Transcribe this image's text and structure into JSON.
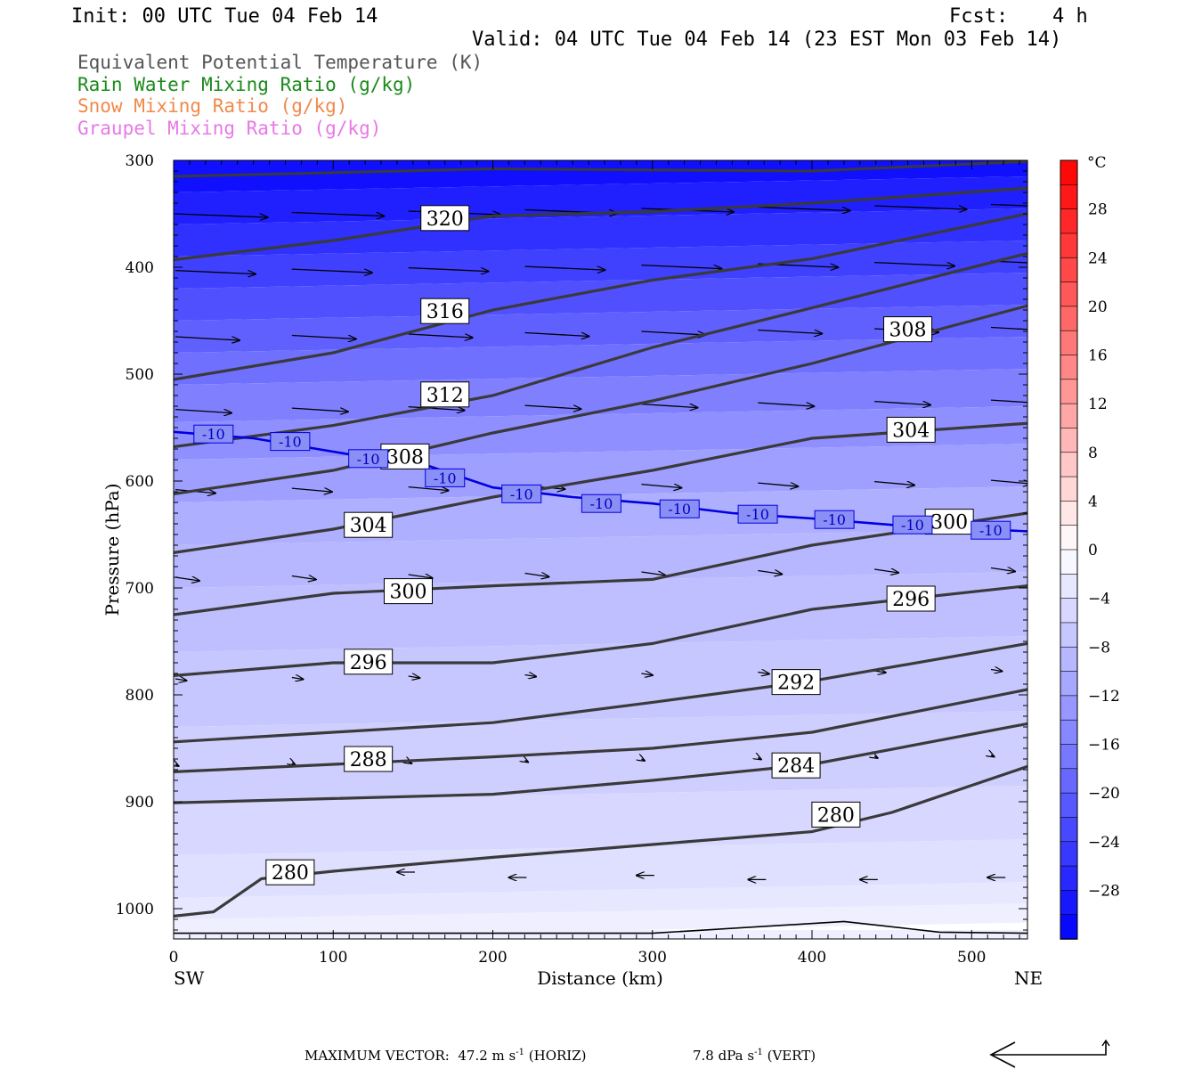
{
  "header": {
    "init": "Init: 00 UTC Tue 04 Feb 14",
    "fcst_label": "Fcst:",
    "fcst_value": "4 h",
    "valid": "Valid: 04 UTC Tue 04 Feb 14 (23 EST Mon 03 Feb 14)"
  },
  "legend": [
    {
      "label": "Equivalent Potential Temperature (K)",
      "color": "#555555"
    },
    {
      "label": "Rain Water Mixing Ratio (g/kg)",
      "color": "#1a8a1a"
    },
    {
      "label": "Snow Mixing Ratio (g/kg)",
      "color": "#f08a4b"
    },
    {
      "label": "Graupel Mixing Ratio (g/kg)",
      "color": "#e878e8"
    }
  ],
  "chart_data": {
    "type": "contour",
    "xlabel": "Distance (km)",
    "ylabel": "Pressure (hPa)",
    "xlim": [
      0,
      535
    ],
    "ylim": [
      1028,
      300
    ],
    "x_ticks": [
      0,
      100,
      200,
      300,
      400,
      500
    ],
    "y_ticks": [
      300,
      400,
      500,
      600,
      700,
      800,
      900,
      1000
    ],
    "x_end_labels": {
      "left": "SW",
      "right": "NE"
    },
    "colorbar": {
      "unit": "°C",
      "ticks": [
        28,
        24,
        20,
        16,
        12,
        8,
        4,
        0,
        -4,
        -8,
        -12,
        -16,
        -20,
        -24,
        -28
      ],
      "range": [
        -32,
        32
      ],
      "step": 2
    },
    "theta_e_contours": [
      {
        "value": 320,
        "label": "320",
        "points": [
          [
            0,
            393
          ],
          [
            100,
            375
          ],
          [
            200,
            352
          ],
          [
            300,
            348
          ],
          [
            400,
            340
          ],
          [
            535,
            326
          ]
        ],
        "label_at": [
          170,
          354
        ]
      },
      {
        "value": 316,
        "label": "316",
        "points": [
          [
            0,
            505
          ],
          [
            100,
            480
          ],
          [
            200,
            440
          ],
          [
            300,
            412
          ],
          [
            400,
            392
          ],
          [
            535,
            350
          ]
        ],
        "label_at": [
          170,
          441
        ]
      },
      {
        "value": 312,
        "label": "312",
        "points": [
          [
            0,
            568
          ],
          [
            100,
            548
          ],
          [
            200,
            520
          ],
          [
            300,
            475
          ],
          [
            400,
            438
          ],
          [
            535,
            387
          ]
        ],
        "label_at": [
          170,
          519
        ]
      },
      {
        "value": 308,
        "label": "308",
        "points": [
          [
            0,
            612
          ],
          [
            100,
            590
          ],
          [
            200,
            555
          ],
          [
            300,
            525
          ],
          [
            400,
            490
          ],
          [
            535,
            436
          ]
        ],
        "label_at": [
          145,
          577
        ],
        "label_at2": [
          460,
          458
        ]
      },
      {
        "value": 304,
        "label": "304",
        "points": [
          [
            0,
            667
          ],
          [
            100,
            645
          ],
          [
            200,
            615
          ],
          [
            300,
            590
          ],
          [
            400,
            560
          ],
          [
            535,
            546
          ]
        ],
        "label_at": [
          122,
          641
        ],
        "label_at2": [
          462,
          552
        ]
      },
      {
        "value": 300,
        "label": "300",
        "points": [
          [
            0,
            725
          ],
          [
            100,
            705
          ],
          [
            200,
            698
          ],
          [
            300,
            692
          ],
          [
            400,
            660
          ],
          [
            535,
            630
          ]
        ],
        "label_at": [
          147,
          703
        ],
        "label_at2": [
          486,
          638
        ]
      },
      {
        "value": 296,
        "label": "296",
        "points": [
          [
            0,
            782
          ],
          [
            100,
            770
          ],
          [
            200,
            770
          ],
          [
            300,
            752
          ],
          [
            400,
            720
          ],
          [
            535,
            698
          ]
        ],
        "label_at": [
          122,
          769
        ],
        "label_at2": [
          462,
          710
        ]
      },
      {
        "value": 292,
        "label": "292",
        "points": [
          [
            0,
            844
          ],
          [
            100,
            835
          ],
          [
            200,
            826
          ],
          [
            300,
            807
          ],
          [
            400,
            787
          ],
          [
            535,
            752
          ]
        ],
        "label_at": [
          390,
          788
        ]
      },
      {
        "value": 288,
        "label": "288",
        "points": [
          [
            0,
            872
          ],
          [
            100,
            865
          ],
          [
            200,
            858
          ],
          [
            300,
            850
          ],
          [
            400,
            835
          ],
          [
            535,
            795
          ]
        ],
        "label_at": [
          122,
          860
        ]
      },
      {
        "value": 284,
        "label": "284",
        "points": [
          [
            0,
            901
          ],
          [
            100,
            897
          ],
          [
            200,
            893
          ],
          [
            300,
            880
          ],
          [
            400,
            865
          ],
          [
            535,
            827
          ]
        ],
        "label_at": [
          390,
          866
        ]
      },
      {
        "value": 280,
        "label": "280",
        "points": [
          [
            0,
            1007
          ],
          [
            25,
            1003
          ],
          [
            55,
            972
          ],
          [
            100,
            965
          ],
          [
            200,
            952
          ],
          [
            300,
            940
          ],
          [
            400,
            928
          ],
          [
            450,
            910
          ],
          [
            535,
            867
          ]
        ],
        "label_at": [
          73,
          966
        ],
        "label_at2": [
          415,
          912
        ]
      }
    ],
    "isotherm_minus10": {
      "label": "-10",
      "points": [
        [
          0,
          554
        ],
        [
          50,
          560
        ],
        [
          110,
          575
        ],
        [
          160,
          586
        ],
        [
          200,
          606
        ],
        [
          250,
          615
        ],
        [
          300,
          621
        ],
        [
          350,
          630
        ],
        [
          400,
          635
        ],
        [
          450,
          641
        ],
        [
          535,
          647
        ]
      ],
      "label_positions": [
        [
          25,
          556
        ],
        [
          73,
          563
        ],
        [
          122,
          579
        ],
        [
          170,
          597
        ],
        [
          218,
          612
        ],
        [
          268,
          621
        ],
        [
          317,
          626
        ],
        [
          366,
          631
        ],
        [
          414,
          636
        ],
        [
          463,
          641
        ],
        [
          512,
          646
        ]
      ]
    },
    "max_vector": {
      "prefix": "MAXIMUM VECTOR:",
      "horiz": "47.2 m s",
      "horiz_tail": "(HORIZ)",
      "vert": "7.8 dPa s",
      "vert_tail": "(VERT)",
      "sup": "-1"
    }
  }
}
